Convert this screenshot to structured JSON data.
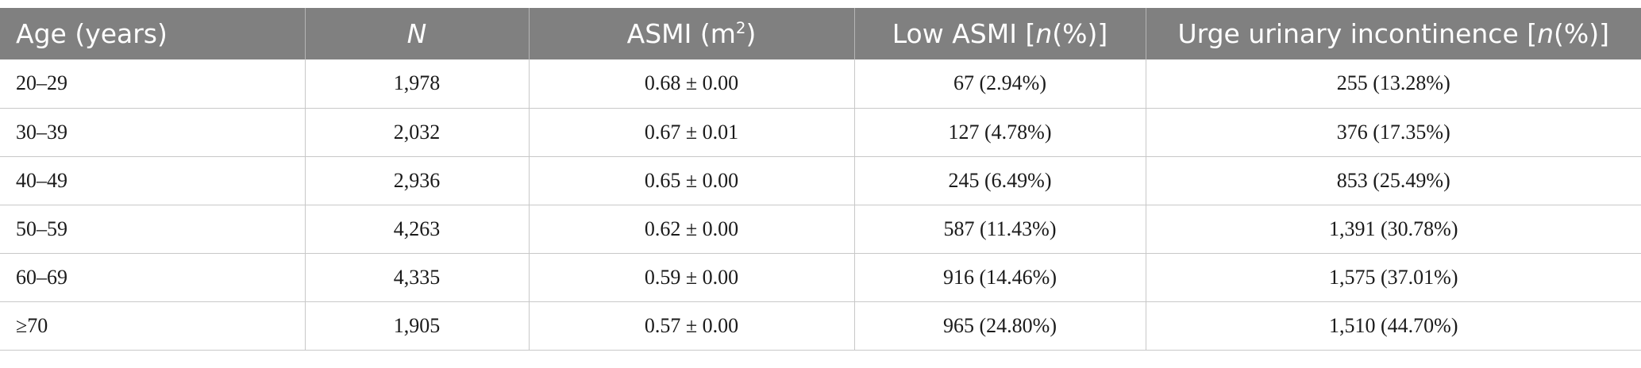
{
  "table": {
    "headers": {
      "age": "Age (years)",
      "n": "N",
      "asmi_prefix": "ASMI (m",
      "asmi_sup": "2",
      "asmi_suffix": ")",
      "low_asmi_prefix": "Low ASMI [",
      "low_asmi_n": "n",
      "low_asmi_suffix": "(%)]",
      "urge_prefix": "Urge urinary incontinence [",
      "urge_n": "n",
      "urge_suffix": "(%)]"
    },
    "rows": [
      {
        "age": "20–29",
        "n": "1,978",
        "asmi": "0.68 ± 0.00",
        "low_asmi": "67 (2.94%)",
        "urge": "255 (13.28%)"
      },
      {
        "age": "30–39",
        "n": "2,032",
        "asmi": "0.67 ± 0.01",
        "low_asmi": "127 (4.78%)",
        "urge": "376 (17.35%)"
      },
      {
        "age": "40–49",
        "n": "2,936",
        "asmi": "0.65 ± 0.00",
        "low_asmi": "245 (6.49%)",
        "urge": "853 (25.49%)"
      },
      {
        "age": "50–59",
        "n": "4,263",
        "asmi": "0.62 ± 0.00",
        "low_asmi": "587 (11.43%)",
        "urge": "1,391 (30.78%)"
      },
      {
        "age": "60–69",
        "n": "4,335",
        "asmi": "0.59 ± 0.00",
        "low_asmi": "916 (14.46%)",
        "urge": "1,575 (37.01%)"
      },
      {
        "age": "≥70",
        "n": "1,905",
        "asmi": "0.57 ± 0.00",
        "low_asmi": "965 (24.80%)",
        "urge": "1,510 (44.70%)"
      }
    ]
  }
}
